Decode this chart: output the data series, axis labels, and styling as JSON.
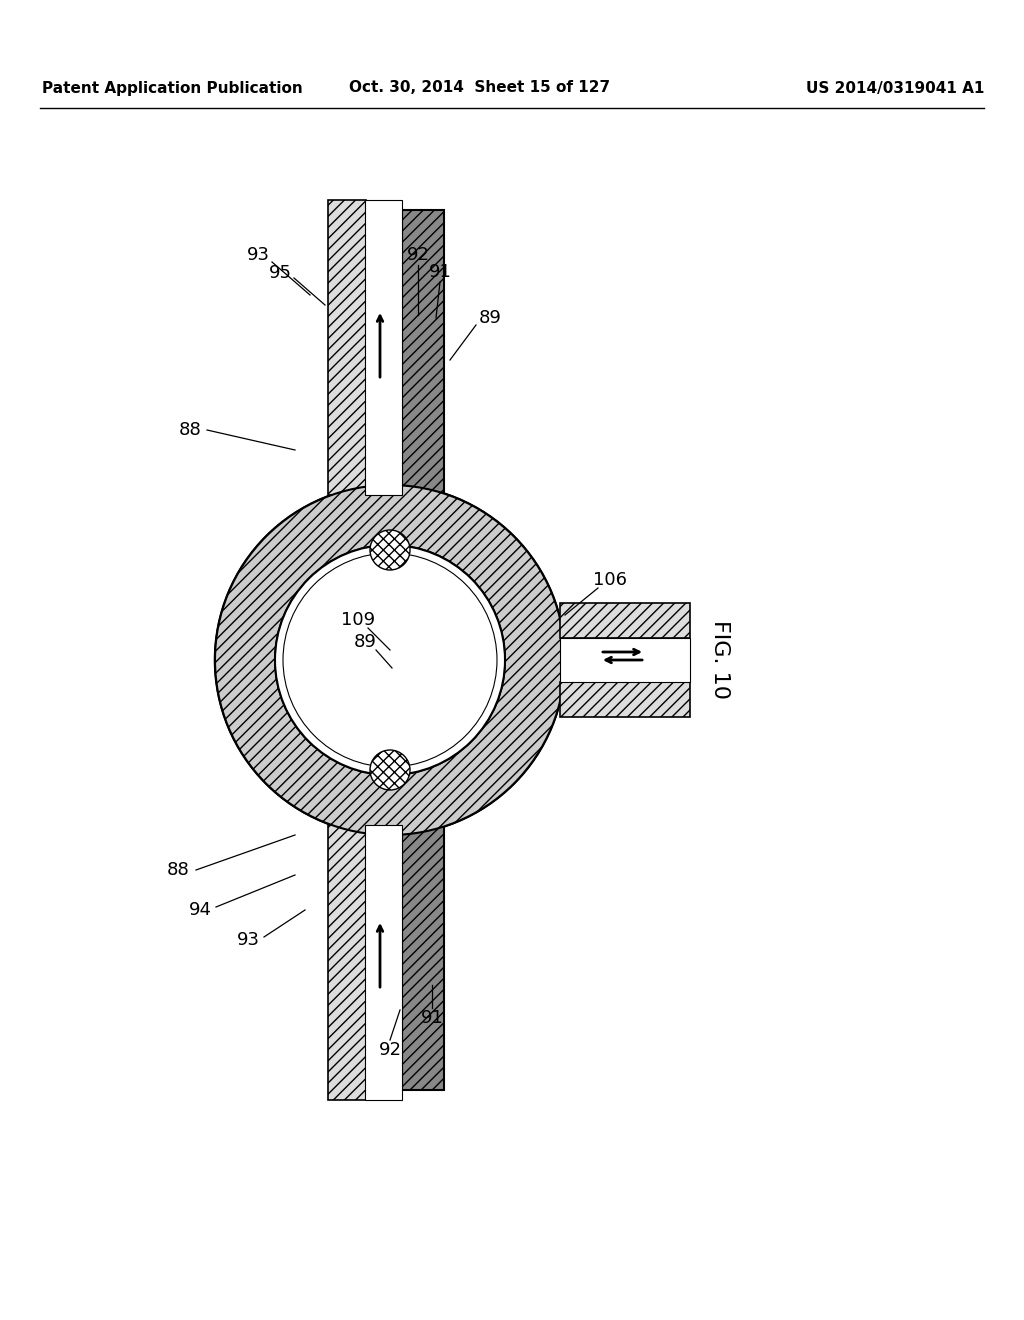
{
  "bg_color": "#ffffff",
  "header_left": "Patent Application Publication",
  "header_center": "Oct. 30, 2014  Sheet 15 of 127",
  "header_right": "US 2014/0319041 A1",
  "fig_label": "FIG. 10",
  "line_color": "#000000"
}
